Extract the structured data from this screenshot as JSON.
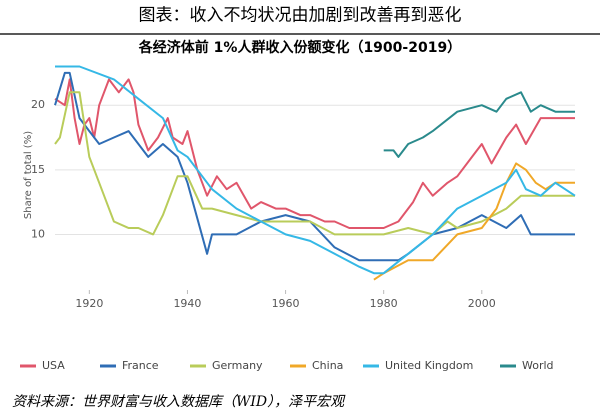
{
  "header": "图表：收入不均状况由加剧到改善再到恶化",
  "chart_data": {
    "type": "line",
    "title": "各经济体前 1%人群收入份额变化（1900-2019）",
    "y_label": "Share of total (%)",
    "xlim": [
      1913,
      2019
    ],
    "xticks": [
      1920,
      1940,
      1960,
      1980,
      2000
    ],
    "ylim": [
      5.7,
      23.5
    ],
    "yticks": [
      10,
      15,
      20
    ],
    "grid": true,
    "series": [
      {
        "name": "USA",
        "color": "#e0566b",
        "x": [
          1913,
          1915,
          1916,
          1917,
          1918,
          1919,
          1920,
          1921,
          1922,
          1924,
          1926,
          1928,
          1929,
          1930,
          1932,
          1934,
          1936,
          1937,
          1939,
          1940,
          1942,
          1944,
          1946,
          1948,
          1950,
          1953,
          1955,
          1958,
          1960,
          1963,
          1965,
          1968,
          1970,
          1973,
          1976,
          1980,
          1983,
          1986,
          1988,
          1990,
          1993,
          1995,
          1998,
          2000,
          2002,
          2005,
          2007,
          2009,
          2012,
          2015,
          2019
        ],
        "values": [
          20.5,
          20,
          22,
          19,
          17,
          18.5,
          19,
          17.5,
          20,
          22,
          21,
          22,
          21,
          18.5,
          16.5,
          17.5,
          19,
          17.5,
          17,
          18,
          15,
          13,
          14.5,
          13.5,
          14,
          12,
          12.5,
          12,
          12,
          11.5,
          11.5,
          11,
          11,
          10.5,
          10.5,
          10.5,
          11,
          12.5,
          14,
          13,
          14,
          14.5,
          16,
          17,
          15.5,
          17.5,
          18.5,
          17,
          19,
          19,
          19
        ]
      },
      {
        "name": "France",
        "color": "#2f6db5",
        "x": [
          1913,
          1915,
          1916,
          1918,
          1920,
          1922,
          1925,
          1928,
          1930,
          1932,
          1935,
          1938,
          1940,
          1944,
          1945,
          1948,
          1950,
          1955,
          1960,
          1965,
          1970,
          1975,
          1980,
          1983,
          1985,
          1990,
          1995,
          2000,
          2005,
          2008,
          2010,
          2015,
          2019
        ],
        "values": [
          20,
          22.5,
          22.5,
          19,
          18,
          17,
          17.5,
          18,
          17,
          16,
          17,
          16,
          14,
          8.5,
          10,
          10,
          10,
          11,
          11.5,
          11,
          9,
          8,
          8,
          8,
          8.5,
          10,
          10.5,
          11.5,
          10.5,
          11.5,
          10,
          10,
          10
        ]
      },
      {
        "name": "Germany",
        "color": "#b9cc5a",
        "x": [
          1913,
          1914,
          1916,
          1918,
          1920,
          1922,
          1925,
          1928,
          1930,
          1933,
          1935,
          1938,
          1940,
          1943,
          1945,
          1950,
          1955,
          1960,
          1965,
          1970,
          1975,
          1980,
          1985,
          1990,
          1993,
          1995,
          2000,
          2005,
          2008,
          2010,
          2015,
          2019
        ],
        "values": [
          17,
          17.5,
          21,
          21,
          16,
          14,
          11,
          10.5,
          10.5,
          10,
          11.5,
          14.5,
          14.5,
          12,
          12,
          11.5,
          11,
          11,
          11,
          10,
          10,
          10,
          10.5,
          10,
          11,
          10.5,
          11,
          12,
          13,
          13,
          13,
          13
        ]
      },
      {
        "name": "China",
        "color": "#f0a828",
        "x": [
          1978,
          1980,
          1985,
          1990,
          1995,
          2000,
          2003,
          2005,
          2007,
          2009,
          2011,
          2013,
          2015,
          2019
        ],
        "values": [
          6.5,
          7,
          8,
          8,
          10,
          10.5,
          12,
          14,
          15.5,
          15,
          14,
          13.5,
          14,
          14
        ]
      },
      {
        "name": "United Kingdom",
        "color": "#35b8e6",
        "x": [
          1913,
          1918,
          1925,
          1930,
          1935,
          1938,
          1940,
          1945,
          1950,
          1955,
          1960,
          1965,
          1970,
          1975,
          1978,
          1980,
          1985,
          1990,
          1995,
          2000,
          2005,
          2007,
          2009,
          2012,
          2015,
          2019
        ],
        "values": [
          23,
          23,
          22,
          20.5,
          19,
          16.5,
          16,
          13.5,
          12,
          11,
          10,
          9.5,
          8.5,
          7.5,
          7,
          7,
          8.5,
          10,
          12,
          13,
          14,
          15,
          13.5,
          13,
          14,
          13
        ]
      },
      {
        "name": "World",
        "color": "#2a8a8c",
        "x": [
          1980,
          1982,
          1983,
          1985,
          1988,
          1990,
          1995,
          2000,
          2003,
          2005,
          2008,
          2010,
          2012,
          2015,
          2019
        ],
        "values": [
          16.5,
          16.5,
          16,
          17,
          17.5,
          18,
          19.5,
          20,
          19.5,
          20.5,
          21,
          19.5,
          20,
          19.5,
          19.5
        ]
      }
    ]
  },
  "source": "资料来源：世界财富与收入数据库（WID），泽平宏观"
}
